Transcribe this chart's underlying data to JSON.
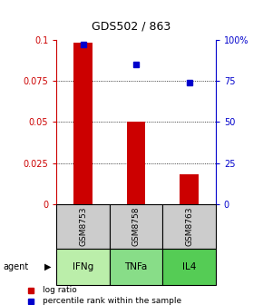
{
  "title": "GDS502 / 863",
  "samples": [
    "GSM8753",
    "GSM8758",
    "GSM8763"
  ],
  "agents": [
    "IFNg",
    "TNFa",
    "IL4"
  ],
  "log_ratio": [
    0.098,
    0.05,
    0.018
  ],
  "percentile": [
    97,
    85,
    74
  ],
  "bar_color": "#cc0000",
  "dot_color": "#0000cc",
  "ylim_left": [
    0,
    0.1
  ],
  "ylim_right": [
    0,
    100
  ],
  "yticks_left": [
    0,
    0.025,
    0.05,
    0.075,
    0.1
  ],
  "ytick_labels_left": [
    "0",
    "0.025",
    "0.05",
    "0.075",
    "0.1"
  ],
  "yticks_right": [
    0,
    25,
    50,
    75,
    100
  ],
  "ytick_labels_right": [
    "0",
    "25",
    "50",
    "75",
    "100%"
  ],
  "sample_box_color": "#cccccc",
  "agent_colors": [
    "#bbeeaa",
    "#88dd88",
    "#55cc55"
  ],
  "left_axis_color": "#cc0000",
  "right_axis_color": "#0000cc",
  "legend_log_label": "log ratio",
  "legend_pct_label": "percentile rank within the sample",
  "bar_width": 0.35,
  "figsize": [
    2.9,
    3.36
  ],
  "dpi": 100
}
